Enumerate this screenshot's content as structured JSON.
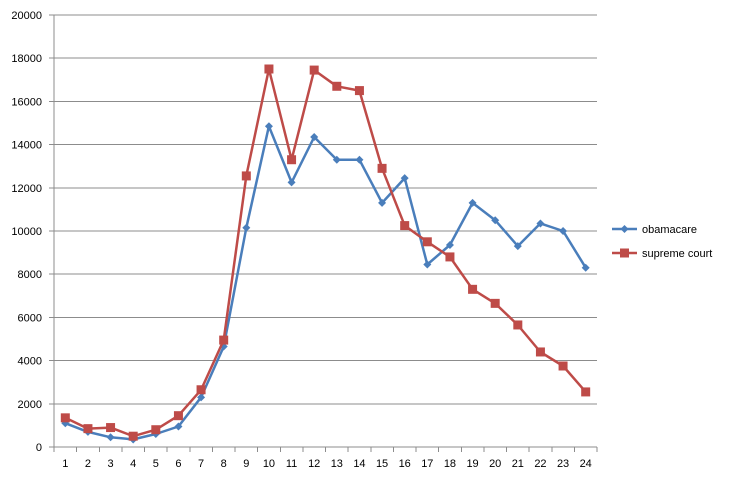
{
  "chart_data": {
    "type": "line",
    "title": "",
    "xlabel": "",
    "ylabel": "",
    "x": [
      1,
      2,
      3,
      4,
      5,
      6,
      7,
      8,
      9,
      10,
      11,
      12,
      13,
      14,
      15,
      16,
      17,
      18,
      19,
      20,
      21,
      22,
      23,
      24
    ],
    "ylim": [
      0,
      20000
    ],
    "yticks": [
      0,
      2000,
      4000,
      6000,
      8000,
      10000,
      12000,
      14000,
      16000,
      18000,
      20000
    ],
    "grid": true,
    "legend_position": "right",
    "series": [
      {
        "name": "obamacare",
        "color": "#4a7ebb",
        "marker": "diamond",
        "values": [
          1100,
          700,
          450,
          350,
          600,
          950,
          2300,
          4650,
          10150,
          14850,
          12250,
          14350,
          13300,
          13300,
          11300,
          12450,
          8450,
          9350,
          11300,
          10500,
          9300,
          10350,
          10000,
          8300
        ]
      },
      {
        "name": "supreme court",
        "color": "#be4b48",
        "marker": "square",
        "values": [
          1350,
          850,
          900,
          500,
          800,
          1450,
          2650,
          4950,
          12550,
          17500,
          13300,
          17450,
          16700,
          16500,
          12900,
          10250,
          9500,
          8800,
          7300,
          6650,
          5650,
          4400,
          3750,
          2550
        ]
      }
    ]
  }
}
